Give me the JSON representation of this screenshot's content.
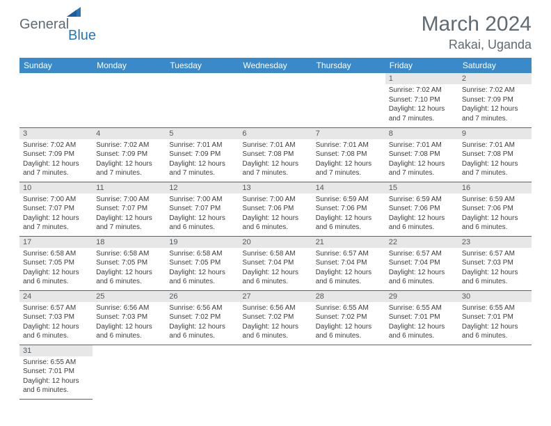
{
  "logo": {
    "part1": "General",
    "part2": "Blue"
  },
  "title": "March 2024",
  "location": "Rakai, Uganda",
  "colors": {
    "header_bg": "#3a8ac9",
    "header_text": "#ffffff",
    "daynum_bg": "#e7e7e7",
    "row_border": "#2d6aa6",
    "logo_gray": "#5f6a72",
    "logo_blue": "#2874b8",
    "body_text": "#3c3c3c"
  },
  "weekdays": [
    "Sunday",
    "Monday",
    "Tuesday",
    "Wednesday",
    "Thursday",
    "Friday",
    "Saturday"
  ],
  "weeks": [
    [
      null,
      null,
      null,
      null,
      null,
      {
        "n": "1",
        "sr": "7:02 AM",
        "ss": "7:10 PM",
        "dl": "12 hours and 7 minutes."
      },
      {
        "n": "2",
        "sr": "7:02 AM",
        "ss": "7:09 PM",
        "dl": "12 hours and 7 minutes."
      }
    ],
    [
      {
        "n": "3",
        "sr": "7:02 AM",
        "ss": "7:09 PM",
        "dl": "12 hours and 7 minutes."
      },
      {
        "n": "4",
        "sr": "7:02 AM",
        "ss": "7:09 PM",
        "dl": "12 hours and 7 minutes."
      },
      {
        "n": "5",
        "sr": "7:01 AM",
        "ss": "7:09 PM",
        "dl": "12 hours and 7 minutes."
      },
      {
        "n": "6",
        "sr": "7:01 AM",
        "ss": "7:08 PM",
        "dl": "12 hours and 7 minutes."
      },
      {
        "n": "7",
        "sr": "7:01 AM",
        "ss": "7:08 PM",
        "dl": "12 hours and 7 minutes."
      },
      {
        "n": "8",
        "sr": "7:01 AM",
        "ss": "7:08 PM",
        "dl": "12 hours and 7 minutes."
      },
      {
        "n": "9",
        "sr": "7:01 AM",
        "ss": "7:08 PM",
        "dl": "12 hours and 7 minutes."
      }
    ],
    [
      {
        "n": "10",
        "sr": "7:00 AM",
        "ss": "7:07 PM",
        "dl": "12 hours and 7 minutes."
      },
      {
        "n": "11",
        "sr": "7:00 AM",
        "ss": "7:07 PM",
        "dl": "12 hours and 7 minutes."
      },
      {
        "n": "12",
        "sr": "7:00 AM",
        "ss": "7:07 PM",
        "dl": "12 hours and 6 minutes."
      },
      {
        "n": "13",
        "sr": "7:00 AM",
        "ss": "7:06 PM",
        "dl": "12 hours and 6 minutes."
      },
      {
        "n": "14",
        "sr": "6:59 AM",
        "ss": "7:06 PM",
        "dl": "12 hours and 6 minutes."
      },
      {
        "n": "15",
        "sr": "6:59 AM",
        "ss": "7:06 PM",
        "dl": "12 hours and 6 minutes."
      },
      {
        "n": "16",
        "sr": "6:59 AM",
        "ss": "7:06 PM",
        "dl": "12 hours and 6 minutes."
      }
    ],
    [
      {
        "n": "17",
        "sr": "6:58 AM",
        "ss": "7:05 PM",
        "dl": "12 hours and 6 minutes."
      },
      {
        "n": "18",
        "sr": "6:58 AM",
        "ss": "7:05 PM",
        "dl": "12 hours and 6 minutes."
      },
      {
        "n": "19",
        "sr": "6:58 AM",
        "ss": "7:05 PM",
        "dl": "12 hours and 6 minutes."
      },
      {
        "n": "20",
        "sr": "6:58 AM",
        "ss": "7:04 PM",
        "dl": "12 hours and 6 minutes."
      },
      {
        "n": "21",
        "sr": "6:57 AM",
        "ss": "7:04 PM",
        "dl": "12 hours and 6 minutes."
      },
      {
        "n": "22",
        "sr": "6:57 AM",
        "ss": "7:04 PM",
        "dl": "12 hours and 6 minutes."
      },
      {
        "n": "23",
        "sr": "6:57 AM",
        "ss": "7:03 PM",
        "dl": "12 hours and 6 minutes."
      }
    ],
    [
      {
        "n": "24",
        "sr": "6:57 AM",
        "ss": "7:03 PM",
        "dl": "12 hours and 6 minutes."
      },
      {
        "n": "25",
        "sr": "6:56 AM",
        "ss": "7:03 PM",
        "dl": "12 hours and 6 minutes."
      },
      {
        "n": "26",
        "sr": "6:56 AM",
        "ss": "7:02 PM",
        "dl": "12 hours and 6 minutes."
      },
      {
        "n": "27",
        "sr": "6:56 AM",
        "ss": "7:02 PM",
        "dl": "12 hours and 6 minutes."
      },
      {
        "n": "28",
        "sr": "6:55 AM",
        "ss": "7:02 PM",
        "dl": "12 hours and 6 minutes."
      },
      {
        "n": "29",
        "sr": "6:55 AM",
        "ss": "7:01 PM",
        "dl": "12 hours and 6 minutes."
      },
      {
        "n": "30",
        "sr": "6:55 AM",
        "ss": "7:01 PM",
        "dl": "12 hours and 6 minutes."
      }
    ],
    [
      {
        "n": "31",
        "sr": "6:55 AM",
        "ss": "7:01 PM",
        "dl": "12 hours and 6 minutes."
      },
      null,
      null,
      null,
      null,
      null,
      null
    ]
  ],
  "labels": {
    "sunrise": "Sunrise:",
    "sunset": "Sunset:",
    "daylight": "Daylight:"
  }
}
